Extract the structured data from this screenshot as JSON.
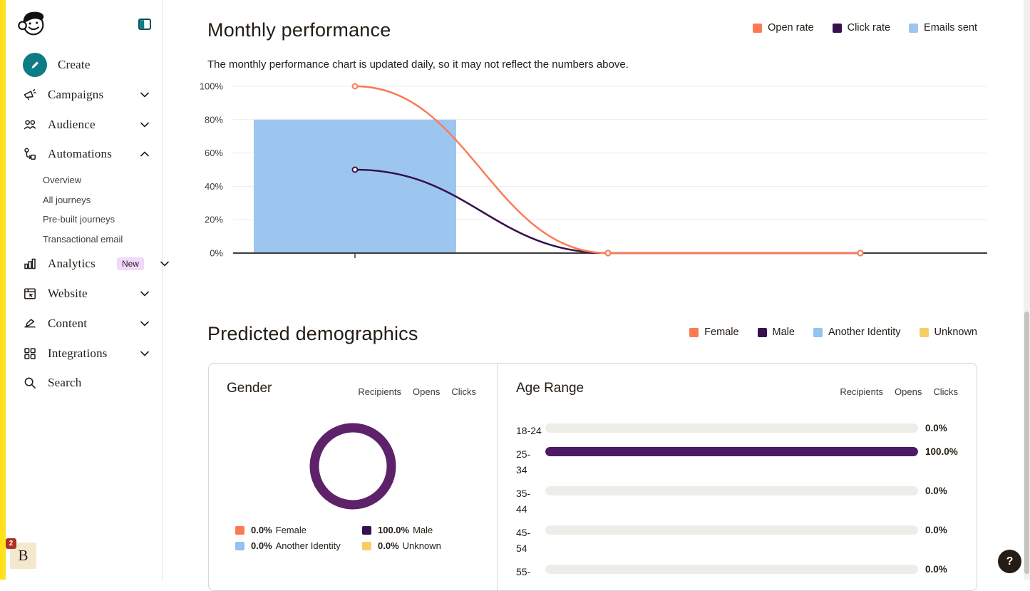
{
  "colors": {
    "brand_yellow": "#ffe01b",
    "brand_teal": "#0e7c86",
    "text_dark": "#241c15",
    "open_rate_orange": "#fc7a53",
    "click_rate_purple": "#38104d",
    "emails_sent_blue": "#9cc6ef",
    "donut_purple": "#5d2269",
    "age_bar_purple": "#4d1a66",
    "age_track_gray": "#efede9",
    "new_badge_pink": "#f0d9fa",
    "notif_badge_red": "#ab3223"
  },
  "sidebar": {
    "logo_name": "mailchimp-freddie-logo",
    "items": [
      {
        "label": "Create"
      },
      {
        "label": "Campaigns",
        "chevron": "down"
      },
      {
        "label": "Audience",
        "chevron": "down"
      },
      {
        "label": "Automations",
        "chevron": "up",
        "subitems": [
          {
            "label": "Overview"
          },
          {
            "label": "All journeys"
          },
          {
            "label": "Pre-built journeys"
          },
          {
            "label": "Transactional email"
          }
        ]
      },
      {
        "label": "Analytics",
        "badge": "New",
        "chevron": "down"
      },
      {
        "label": "Website",
        "chevron": "down"
      },
      {
        "label": "Content",
        "chevron": "down"
      },
      {
        "label": "Integrations",
        "chevron": "down"
      },
      {
        "label": "Search"
      }
    ]
  },
  "monthly": {
    "title": "Monthly performance",
    "subtitle": "The monthly performance chart is updated daily, so it may not reflect the numbers above.",
    "legend": [
      {
        "label": "Open rate",
        "color": "#fc7a53"
      },
      {
        "label": "Click rate",
        "color": "#38104d"
      },
      {
        "label": "Emails sent",
        "color": "#9cc6ef"
      }
    ]
  },
  "demographics": {
    "title": "Predicted demographics",
    "legend": [
      {
        "label": "Female",
        "color": "#fc7a53"
      },
      {
        "label": "Male",
        "color": "#38104d"
      },
      {
        "label": "Another Identity",
        "color": "#92c3f1"
      },
      {
        "label": "Unknown",
        "color": "#f6ce64"
      }
    ],
    "gender": {
      "title": "Gender",
      "tabs": [
        "Recipients",
        "Opens",
        "Clicks"
      ],
      "ring_color": "#5d2269",
      "legend": [
        {
          "pct": "0.0%",
          "label": "Female",
          "color": "#fc7a53"
        },
        {
          "pct": "100.0%",
          "label": "Male",
          "color": "#38104d"
        },
        {
          "pct": "0.0%",
          "label": "Another Identity",
          "color": "#92c3f1"
        },
        {
          "pct": "0.0%",
          "label": "Unknown",
          "color": "#f6ce64"
        }
      ]
    },
    "age": {
      "title": "Age Range",
      "tabs": [
        "Recipients",
        "Opens",
        "Clicks"
      ],
      "bar_color": "#4d1a66",
      "track_color": "#efede9",
      "rows": [
        {
          "line1": "18-24",
          "line2": "",
          "value": "0.0%",
          "fill_pct": 0
        },
        {
          "line1": "25-",
          "line2": "34",
          "value": "100.0%",
          "fill_pct": 100
        },
        {
          "line1": "35-",
          "line2": "44",
          "value": "0.0%",
          "fill_pct": 0
        },
        {
          "line1": "45-",
          "line2": "54",
          "value": "0.0%",
          "fill_pct": 0
        },
        {
          "line1": "55-",
          "line2": "",
          "value": "0.0%",
          "fill_pct": 0
        }
      ]
    }
  },
  "footer": {
    "avatar_letter": "B",
    "notification_count": "2",
    "help_label": "?"
  },
  "chart_data": [
    {
      "type": "line",
      "title": "Monthly performance",
      "y_tick_labels": [
        "100%",
        "80%",
        "60%",
        "40%",
        "20%",
        "0%"
      ],
      "y_tick_values": [
        100,
        80,
        60,
        40,
        20,
        0
      ],
      "ylim": [
        0,
        100
      ],
      "grid": true,
      "legend_position": "top-right",
      "x_points": 3,
      "x_labels": [
        "",
        "",
        ""
      ],
      "series": [
        {
          "name": "Open rate",
          "kind": "line",
          "color": "#fc7a53",
          "values": [
            100,
            0,
            0
          ]
        },
        {
          "name": "Click rate",
          "kind": "line",
          "color": "#38104d",
          "values": [
            50,
            0,
            0
          ]
        },
        {
          "name": "Emails sent",
          "kind": "bar",
          "color": "#9cc6ef",
          "values": [
            80,
            null,
            null
          ]
        }
      ]
    },
    {
      "type": "pie",
      "title": "Gender",
      "slices": [
        {
          "label": "Female",
          "pct": 0.0
        },
        {
          "label": "Male",
          "pct": 100.0
        },
        {
          "label": "Another Identity",
          "pct": 0.0
        },
        {
          "label": "Unknown",
          "pct": 0.0
        }
      ]
    },
    {
      "type": "bar",
      "title": "Age Range",
      "categories": [
        "18-24",
        "25-34",
        "35-44",
        "45-54",
        "55-"
      ],
      "values": [
        0.0,
        100.0,
        0.0,
        0.0,
        0.0
      ],
      "xlabel": "",
      "ylabel": "",
      "ylim": [
        0,
        100
      ]
    }
  ]
}
